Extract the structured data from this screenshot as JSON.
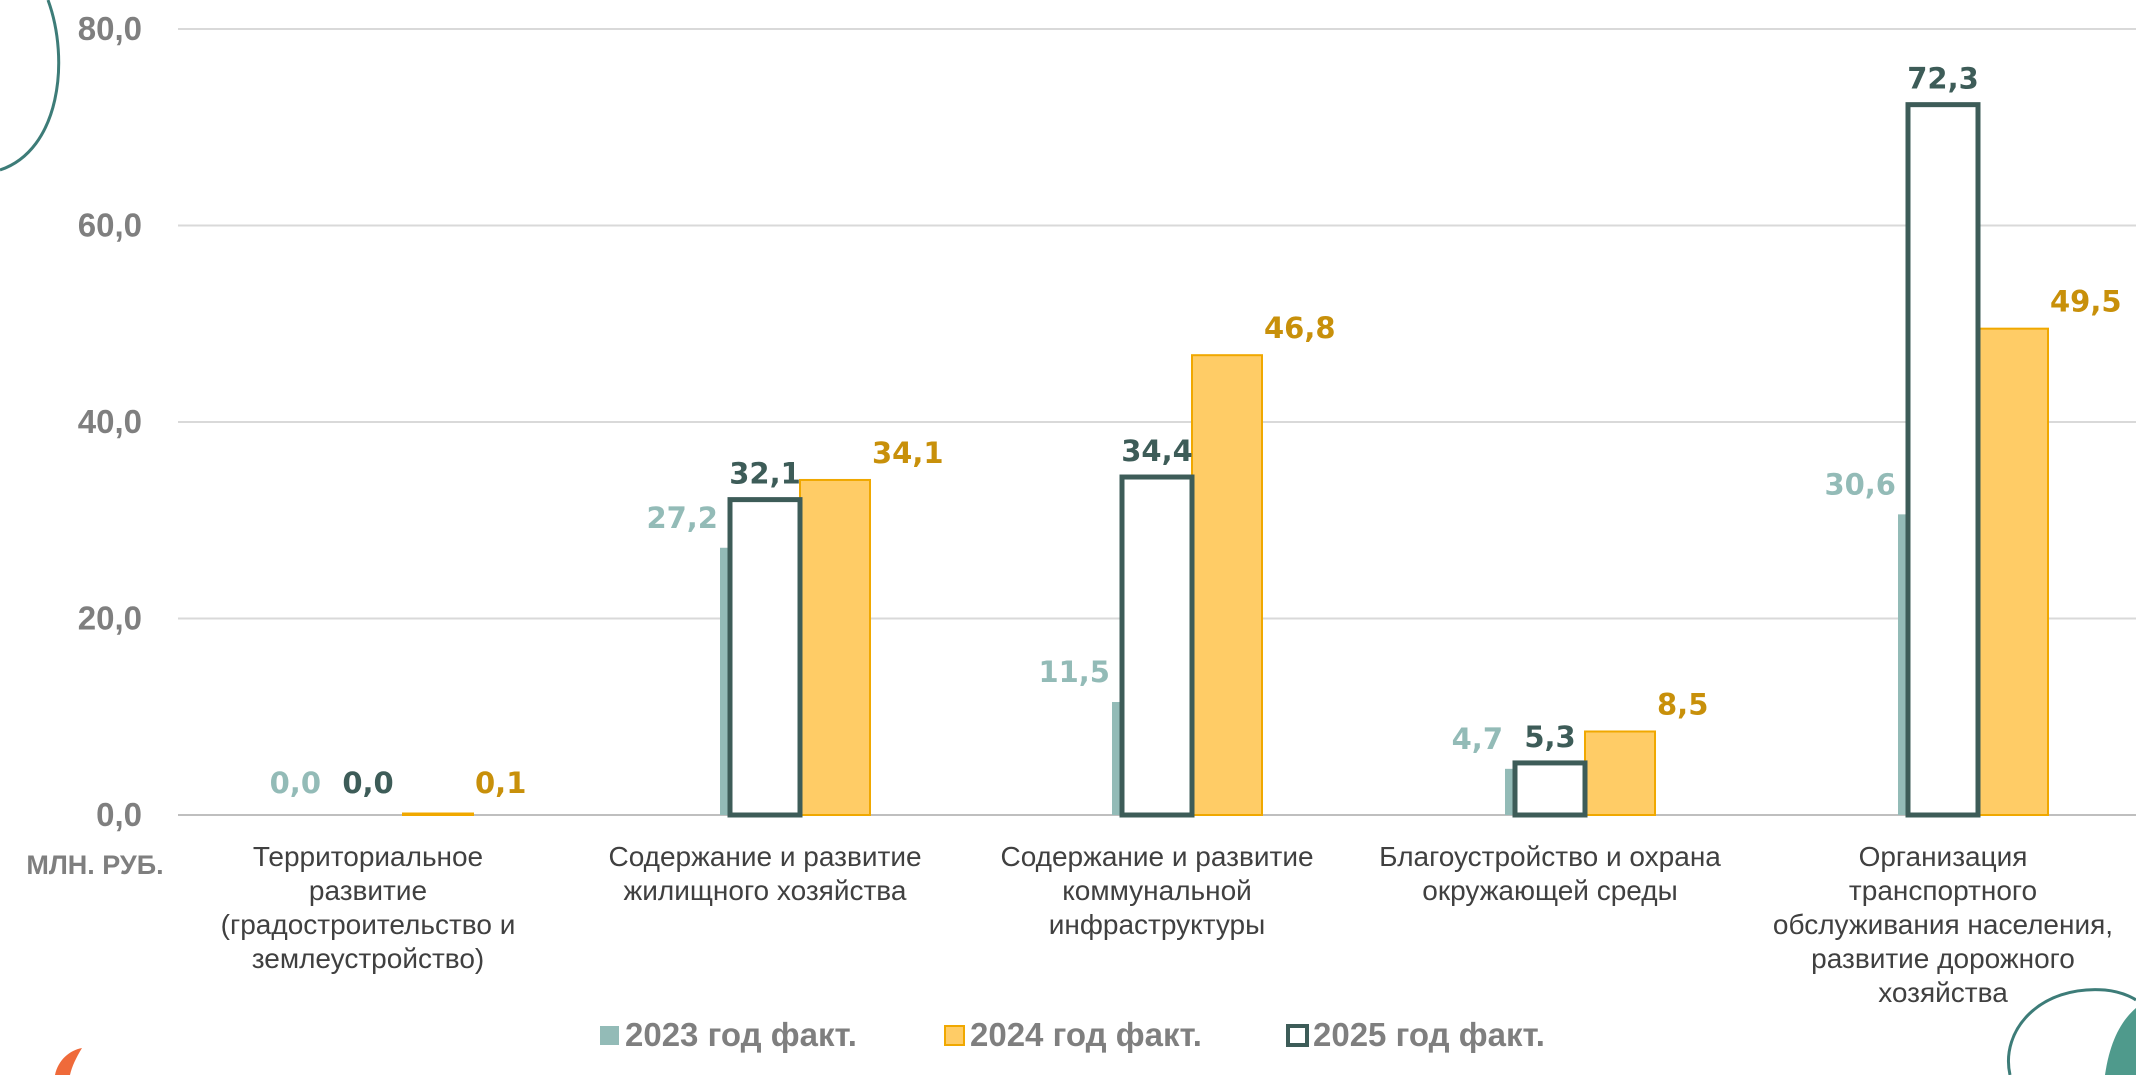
{
  "chart_data": {
    "type": "bar",
    "unit_label": "МЛН. РУБ.",
    "ylim": [
      0,
      80
    ],
    "yticks": [
      "0,0",
      "20,0",
      "40,0",
      "60,0",
      "80,0"
    ],
    "ytick_values": [
      0,
      20,
      40,
      60,
      80
    ],
    "grid": true,
    "legend_position": "bottom",
    "categories": [
      [
        "Территориальное",
        "развитие",
        "(градостроительство и",
        "землеустройство)"
      ],
      [
        "Содержание и развитие",
        "жилищного хозяйства"
      ],
      [
        "Содержание и развитие",
        "коммунальной",
        "инфраструктуры"
      ],
      [
        "Благоустройство и охрана",
        "окружающей среды"
      ],
      [
        "Организация",
        "транспортного",
        "обслуживания населения,",
        "развитие дорожного",
        "хозяйства"
      ]
    ],
    "series": [
      {
        "name": "2023 год факт.",
        "values": [
          0.0,
          27.2,
          11.5,
          4.7,
          30.6
        ],
        "labels": [
          "0,0",
          "27,2",
          "11,5",
          "4,7",
          "30,6"
        ],
        "color": "#93bbb7",
        "style": "filled"
      },
      {
        "name": "2024 год факт.",
        "values": [
          0.1,
          34.1,
          46.8,
          8.5,
          49.5
        ],
        "labels": [
          "0,1",
          "34,1",
          "46,8",
          "8,5",
          "49,5"
        ],
        "color": "#ffcc66",
        "stroke": "#f0a800",
        "label_color": "#c8900a",
        "style": "filled"
      },
      {
        "name": "2025 год факт.",
        "values": [
          0.0,
          32.1,
          34.4,
          5.3,
          72.3
        ],
        "labels": [
          "0,0",
          "32,1",
          "34,4",
          "5,3",
          "72,3"
        ],
        "color": "#ffffff",
        "stroke": "#3d5c58",
        "label_color": "#3d5c58",
        "style": "outline"
      }
    ]
  }
}
